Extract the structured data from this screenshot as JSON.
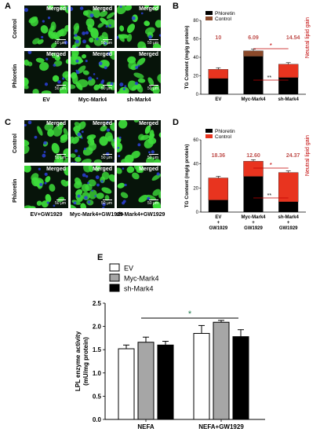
{
  "panels": {
    "A": {
      "label": "A",
      "merged_label": "Merged",
      "scale_bar": "50 μm",
      "rows": [
        "Control",
        "Phloretin"
      ],
      "columns": [
        "EV",
        "Myc-Mark4",
        "sh-Mark4"
      ]
    },
    "C": {
      "label": "C",
      "merged_label": "Merged",
      "scale_bar": "50 μm",
      "rows": [
        "Control",
        "Phloretin"
      ],
      "columns": [
        "EV+GW1929",
        "Myc-Mark4+GW1929",
        "sh-Mark4+GW1929"
      ]
    }
  },
  "colors": {
    "phloretin": "#000000",
    "control": "#e8341f",
    "control_top_B": "#8b4a2b",
    "value_text": "#c0504d",
    "annotation": "#c00000",
    "bar_ev": "#ffffff",
    "bar_myc": "#a6a6a6",
    "bar_sh": "#000000",
    "cells_green": "#3ddc3a",
    "nuclei_blue": "#2a3fd8",
    "tile_bg": "#07140a"
  },
  "chart_data": [
    {
      "panel": "B",
      "type": "bar",
      "stacked": true,
      "ylabel": "TG Content (mg/g protein)",
      "ylim": [
        0,
        80
      ],
      "yticks": [
        0,
        20,
        40,
        60,
        80
      ],
      "categories": [
        "EV",
        "Myc-Mark4",
        "sh-Mark4"
      ],
      "legend": [
        "Phloretin",
        "Control"
      ],
      "series": [
        {
          "name": "Phloretin",
          "values": [
            17,
            41,
            18
          ]
        },
        {
          "name": "Control",
          "values": [
            10,
            6.09,
            14.54
          ]
        }
      ],
      "gain_labels": [
        "10",
        "6.09",
        "14.54"
      ],
      "annotation": "Neutral lipid gain",
      "sig": {
        "star": "*",
        "double": "**"
      }
    },
    {
      "panel": "D",
      "type": "bar",
      "stacked": true,
      "ylabel": "TG Content (mg/g protein)",
      "ylim": [
        0,
        60
      ],
      "yticks": [
        0,
        20,
        40,
        60
      ],
      "categories": [
        "EV + GW1929",
        "Myc-Mark4 + GW1929",
        "sh-Mark4 + GW1929"
      ],
      "legend": [
        "Phloretin",
        "Control"
      ],
      "series": [
        {
          "name": "Phloretin",
          "values": [
            10,
            29.6,
            8.5
          ]
        },
        {
          "name": "Control",
          "values": [
            18.36,
            12.6,
            24.37
          ]
        }
      ],
      "gain_labels": [
        "18.36",
        "12.60",
        "24.37"
      ],
      "annotation": "Neutral lipid gain",
      "sig": {
        "star": "*",
        "double": "**"
      }
    },
    {
      "panel": "E",
      "type": "bar",
      "ylabel": "LPL enzyme activity (mU/mg protein)",
      "ylim": [
        0,
        2.5
      ],
      "yticks": [
        0.0,
        0.5,
        1.0,
        1.5,
        2.0,
        2.5
      ],
      "categories": [
        "NEFA",
        "NEFA+GW1929"
      ],
      "legend": [
        "EV",
        "Myc-Mark4",
        "sh-Mark4"
      ],
      "series": [
        {
          "name": "EV",
          "values": [
            1.52,
            1.85
          ],
          "errors": [
            0.08,
            0.17
          ]
        },
        {
          "name": "Myc-Mark4",
          "values": [
            1.66,
            2.09
          ],
          "errors": [
            0.11,
            0.04
          ]
        },
        {
          "name": "sh-Mark4",
          "values": [
            1.6,
            1.78
          ],
          "errors": [
            0.08,
            0.15
          ]
        }
      ],
      "sig": "*"
    }
  ],
  "panel_labels": {
    "B": "B",
    "D": "D",
    "E": "E"
  }
}
